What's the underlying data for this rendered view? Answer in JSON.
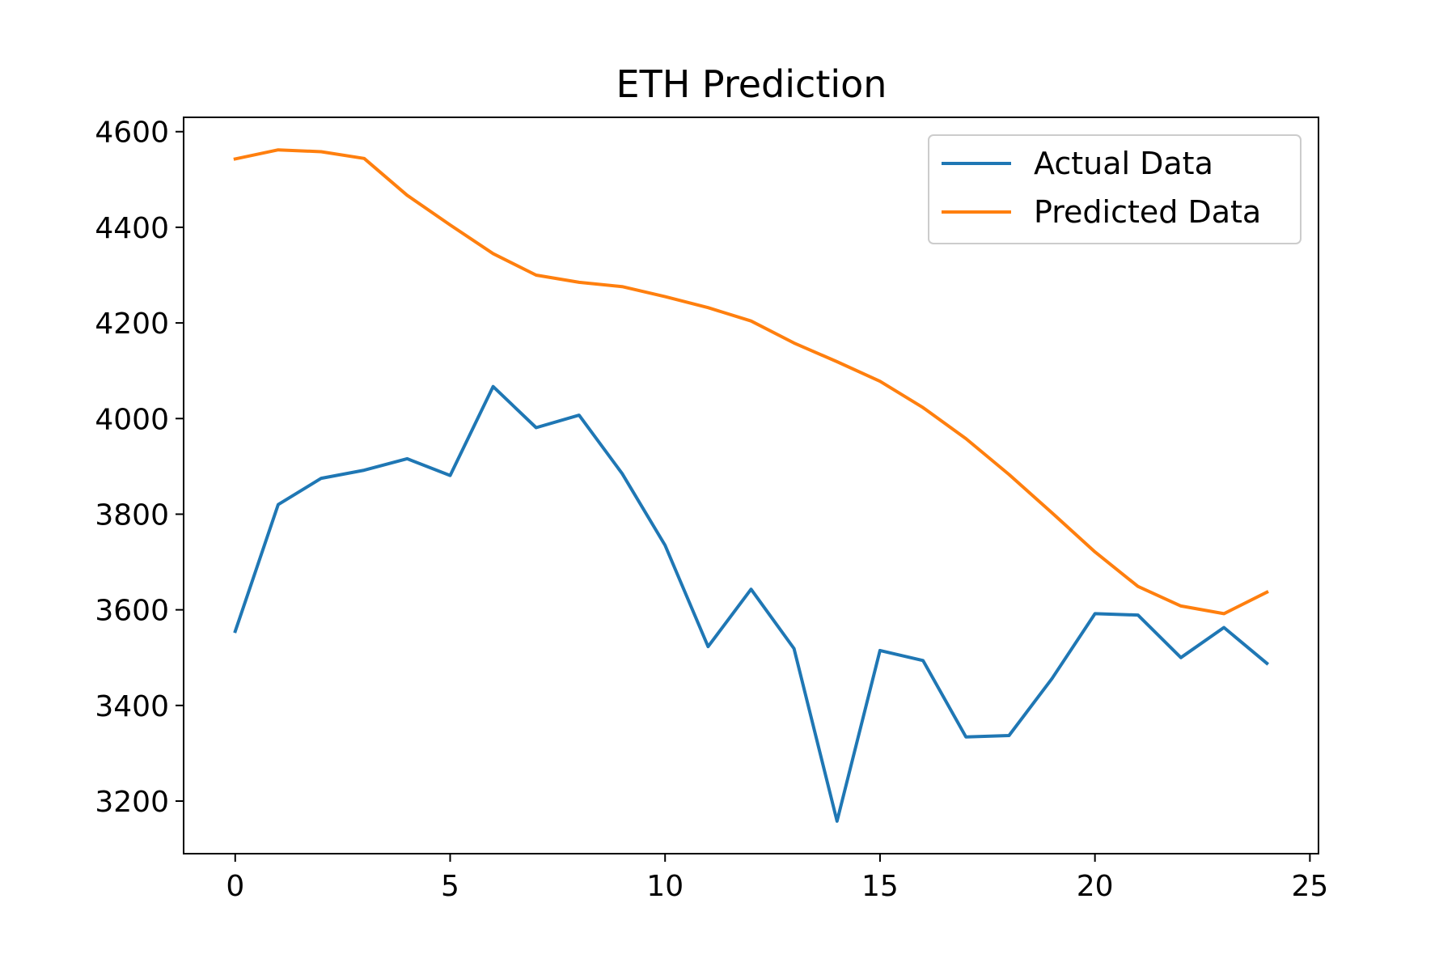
{
  "chart_data": {
    "type": "line",
    "title": "ETH Prediction",
    "xlabel": "",
    "ylabel": "",
    "xlim": [
      -1.2,
      25.2
    ],
    "ylim": [
      3090,
      4630
    ],
    "xticks": [
      0,
      5,
      10,
      15,
      20,
      25
    ],
    "yticks": [
      3200,
      3400,
      3600,
      3800,
      4000,
      4200,
      4400,
      4600
    ],
    "grid": false,
    "legend_position": "top-right",
    "x": [
      0,
      1,
      2,
      3,
      4,
      5,
      6,
      7,
      8,
      9,
      10,
      11,
      12,
      13,
      14,
      15,
      16,
      17,
      18,
      19,
      20,
      21,
      22,
      23,
      24
    ],
    "series": [
      {
        "name": "Actual Data",
        "color": "#1f77b4",
        "values": [
          3555,
          3820,
          3875,
          3892,
          3916,
          3881,
          4067,
          3981,
          4007,
          3885,
          3735,
          3523,
          3643,
          3519,
          3158,
          3515,
          3494,
          3334,
          3337,
          3456,
          3592,
          3589,
          3500,
          3563,
          3488
        ]
      },
      {
        "name": "Predicted Data",
        "color": "#ff7f0e",
        "values": [
          4543,
          4562,
          4558,
          4544,
          4467,
          4405,
          4345,
          4300,
          4285,
          4276,
          4255,
          4232,
          4204,
          4158,
          4119,
          4078,
          4023,
          3958,
          3883,
          3803,
          3721,
          3649,
          3608,
          3592,
          3637
        ]
      }
    ]
  }
}
